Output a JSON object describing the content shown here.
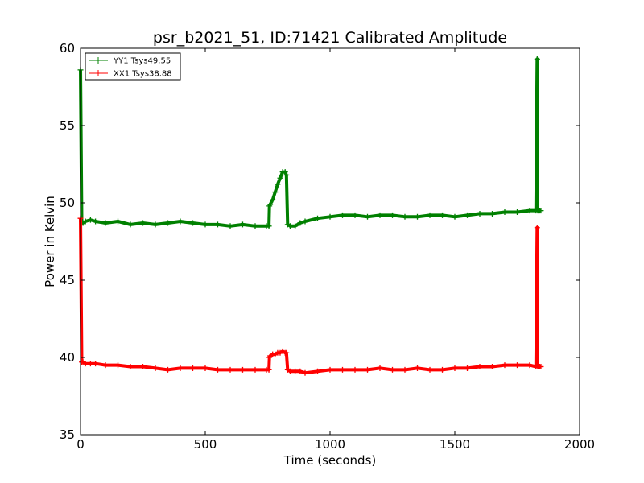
{
  "chart_data": {
    "type": "line",
    "title": "psr_b2021_51, ID:71421 Calibrated Amplitude",
    "xlabel": "Time (seconds)",
    "ylabel": "Power in Kelvin",
    "xlim": [
      0,
      2000
    ],
    "ylim": [
      35,
      60
    ],
    "xticks": [
      0,
      500,
      1000,
      1500,
      2000
    ],
    "yticks": [
      35,
      40,
      45,
      50,
      55,
      60
    ],
    "xtick_labels": [
      "0",
      "500",
      "1000",
      "1500",
      "2000"
    ],
    "ytick_labels": [
      "35",
      "40",
      "45",
      "50",
      "55",
      "60"
    ],
    "grid": false,
    "legend_position": "top-left",
    "series": [
      {
        "name": "YY1 Tsys49.55",
        "color": "#008000",
        "marker": "plus",
        "x": [
          0,
          5,
          10,
          20,
          40,
          60,
          100,
          150,
          200,
          250,
          300,
          350,
          400,
          450,
          500,
          550,
          600,
          650,
          700,
          745,
          755,
          757,
          760,
          770,
          780,
          790,
          800,
          810,
          820,
          825,
          830,
          840,
          860,
          880,
          900,
          950,
          1000,
          1050,
          1100,
          1150,
          1200,
          1250,
          1300,
          1350,
          1400,
          1450,
          1500,
          1550,
          1600,
          1650,
          1700,
          1750,
          1800,
          1825,
          1830,
          1832,
          1835,
          1840,
          1845
        ],
        "y": [
          58.6,
          48.8,
          48.7,
          48.8,
          48.9,
          48.8,
          48.7,
          48.8,
          48.6,
          48.7,
          48.6,
          48.7,
          48.8,
          48.7,
          48.6,
          48.6,
          48.5,
          48.6,
          48.5,
          48.5,
          48.5,
          49.8,
          49.9,
          50.2,
          50.7,
          51.2,
          51.6,
          52.0,
          52.0,
          51.8,
          48.6,
          48.5,
          48.5,
          48.7,
          48.8,
          49.0,
          49.1,
          49.2,
          49.2,
          49.1,
          49.2,
          49.2,
          49.1,
          49.1,
          49.2,
          49.2,
          49.1,
          49.2,
          49.3,
          49.3,
          49.4,
          49.4,
          49.5,
          49.5,
          59.3,
          49.5,
          49.5,
          49.5,
          49.5
        ]
      },
      {
        "name": "XX1 Tsys38.88",
        "color": "#ff0000",
        "marker": "plus",
        "x": [
          0,
          5,
          10,
          20,
          40,
          60,
          100,
          150,
          200,
          250,
          300,
          350,
          400,
          450,
          500,
          550,
          600,
          650,
          700,
          745,
          755,
          757,
          760,
          770,
          780,
          790,
          800,
          810,
          820,
          825,
          830,
          840,
          860,
          880,
          900,
          950,
          1000,
          1050,
          1100,
          1150,
          1200,
          1250,
          1300,
          1350,
          1400,
          1450,
          1500,
          1550,
          1600,
          1650,
          1700,
          1750,
          1800,
          1825,
          1830,
          1832,
          1835,
          1840,
          1845
        ],
        "y": [
          49.0,
          39.7,
          39.7,
          39.6,
          39.6,
          39.6,
          39.5,
          39.5,
          39.4,
          39.4,
          39.3,
          39.2,
          39.3,
          39.3,
          39.3,
          39.2,
          39.2,
          39.2,
          39.2,
          39.2,
          39.2,
          40.0,
          40.1,
          40.2,
          40.2,
          40.3,
          40.3,
          40.4,
          40.3,
          40.3,
          39.2,
          39.1,
          39.1,
          39.1,
          39.0,
          39.1,
          39.2,
          39.2,
          39.2,
          39.2,
          39.3,
          39.2,
          39.2,
          39.3,
          39.2,
          39.2,
          39.3,
          39.3,
          39.4,
          39.4,
          39.5,
          39.5,
          39.5,
          39.4,
          48.4,
          39.4,
          39.4,
          39.4,
          39.4
        ]
      }
    ]
  }
}
